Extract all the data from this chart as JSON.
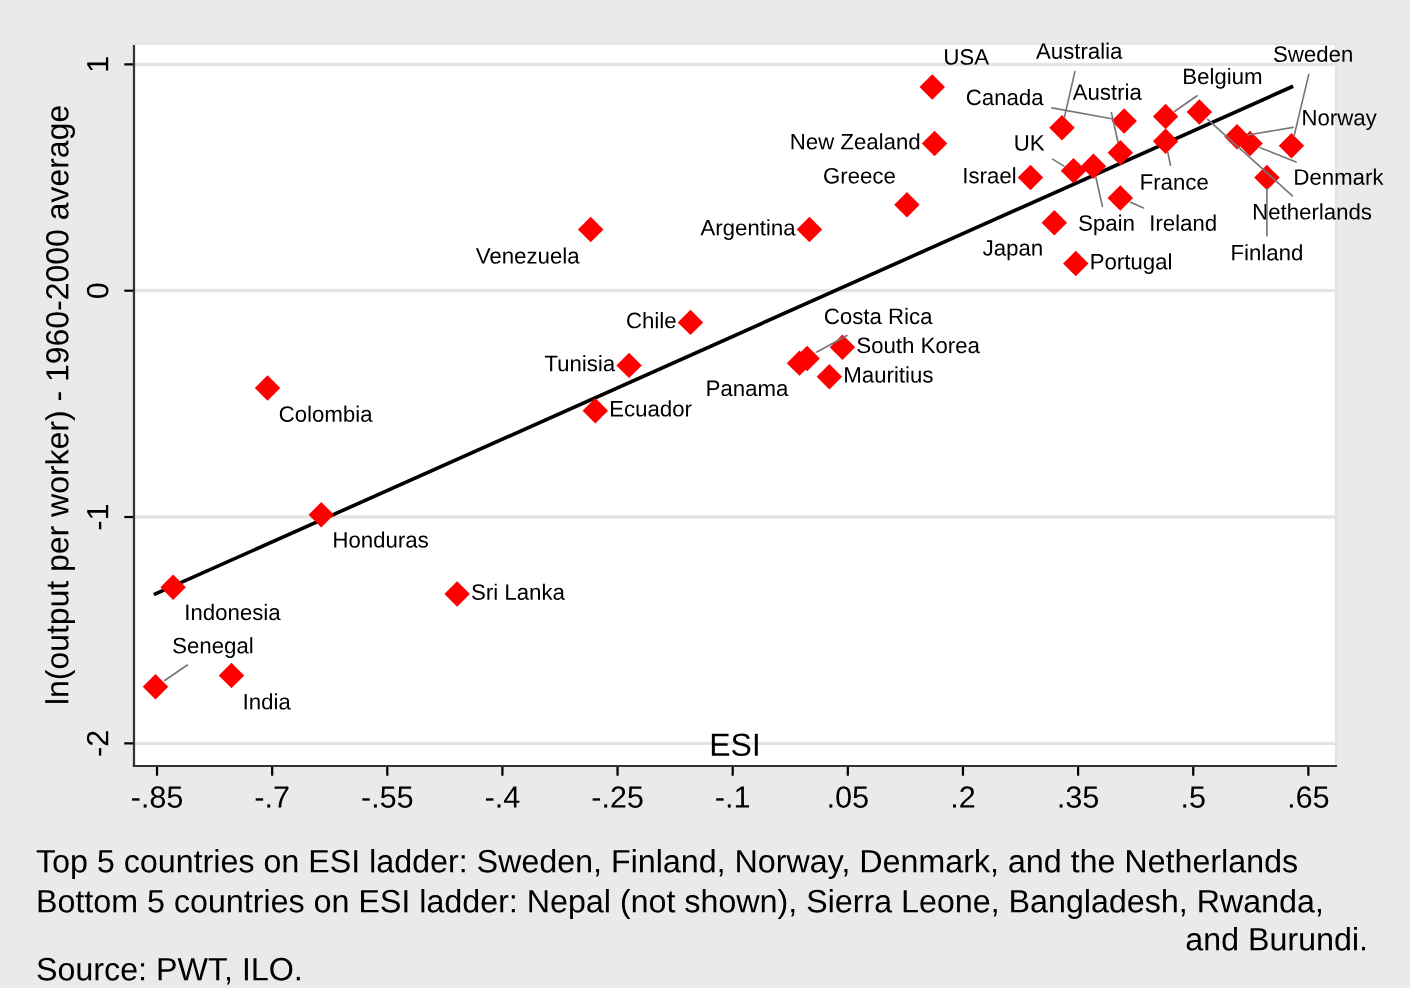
{
  "chart_data": {
    "type": "scatter",
    "xlabel": "ESI",
    "ylabel": "ln(output per worker) - 1960-2000 average",
    "xlim": [
      -0.88,
      0.686
    ],
    "ylim": [
      -2.1,
      1.09
    ],
    "xticks": [
      {
        "value": -0.85,
        "label": "-.85"
      },
      {
        "value": -0.7,
        "label": "-.7"
      },
      {
        "value": -0.55,
        "label": "-.55"
      },
      {
        "value": -0.4,
        "label": "-.4"
      },
      {
        "value": -0.25,
        "label": "-.25"
      },
      {
        "value": -0.1,
        "label": "-.1"
      },
      {
        "value": 0.05,
        "label": ".05"
      },
      {
        "value": 0.2,
        "label": ".2"
      },
      {
        "value": 0.35,
        "label": ".35"
      },
      {
        "value": 0.5,
        "label": ".5"
      },
      {
        "value": 0.65,
        "label": ".65"
      }
    ],
    "yticks": [
      -2,
      -1,
      0,
      1
    ],
    "grid": "y",
    "series": [
      {
        "color": "#ff0000",
        "marker": "diamond",
        "x": [
          0.16,
          0.163,
          0.329,
          0.41,
          0.464,
          0.508,
          0.464,
          0.557,
          0.574,
          0.628,
          0.596,
          0.405,
          0.37,
          0.344,
          0.288,
          0.405,
          0.319,
          0.347,
          0.127,
          0.0,
          -0.285,
          -0.155,
          -0.235,
          -0.279,
          -0.013,
          -0.003,
          0.043,
          0.026,
          -0.706,
          -0.636,
          -0.829,
          -0.459,
          -0.753,
          -0.852
        ],
        "values": [
          0.9,
          0.65,
          0.72,
          0.75,
          0.77,
          0.79,
          0.66,
          0.68,
          0.65,
          0.64,
          0.5,
          0.61,
          0.55,
          0.53,
          0.5,
          0.41,
          0.3,
          0.12,
          0.38,
          0.27,
          0.27,
          -0.14,
          -0.33,
          -0.53,
          -0.32,
          -0.3,
          -0.25,
          -0.38,
          -0.43,
          -0.99,
          -1.31,
          -1.34,
          -1.7,
          -1.75
        ]
      },
      {
        "type": "line",
        "color": "#000000",
        "marker": "none",
        "line_style": "solid",
        "x": [
          -0.852,
          0.628
        ],
        "values": [
          -1.34,
          0.9
        ]
      }
    ],
    "annotations": [
      {
        "text": "USA",
        "x": 0.16,
        "y": 0.905
      },
      {
        "text": "New Zealand",
        "x": 0.163,
        "y": 0.65
      },
      {
        "text": "Australia",
        "x": 0.329,
        "y": 0.72
      },
      {
        "text": "Canada",
        "x": 0.41,
        "y": 0.75
      },
      {
        "text": "Belgium",
        "x": 0.464,
        "y": 0.765
      },
      {
        "text": "Netherlands",
        "x": 0.508,
        "y": 0.79
      },
      {
        "text": "France",
        "x": 0.464,
        "y": 0.66
      },
      {
        "text": "Norway",
        "x": 0.557,
        "y": 0.68
      },
      {
        "text": "Denmark",
        "x": 0.574,
        "y": 0.65
      },
      {
        "text": "Sweden",
        "x": 0.628,
        "y": 0.635
      },
      {
        "text": "Finland",
        "x": 0.596,
        "y": 0.5
      },
      {
        "text": "Austria",
        "x": 0.405,
        "y": 0.61
      },
      {
        "text": "Spain",
        "x": 0.37,
        "y": 0.55
      },
      {
        "text": "UK",
        "x": 0.344,
        "y": 0.525
      },
      {
        "text": "Israel",
        "x": 0.288,
        "y": 0.5
      },
      {
        "text": "Ireland",
        "x": 0.405,
        "y": 0.41
      },
      {
        "text": "Japan",
        "x": 0.319,
        "y": 0.3
      },
      {
        "text": "Portugal",
        "x": 0.347,
        "y": 0.12
      },
      {
        "text": "Greece",
        "x": 0.127,
        "y": 0.38
      },
      {
        "text": "Argentina",
        "x": 0.0,
        "y": 0.27
      },
      {
        "text": "Venezuela",
        "x": -0.285,
        "y": 0.265
      },
      {
        "text": "Chile",
        "x": -0.155,
        "y": -0.14
      },
      {
        "text": "Tunisia",
        "x": -0.235,
        "y": -0.33
      },
      {
        "text": "Ecuador",
        "x": -0.279,
        "y": -0.53
      },
      {
        "text": "Panama",
        "x": -0.013,
        "y": -0.32
      },
      {
        "text": "Costa Rica",
        "x": -0.003,
        "y": -0.295
      },
      {
        "text": "South Korea",
        "x": 0.043,
        "y": -0.25
      },
      {
        "text": "Mauritius",
        "x": 0.026,
        "y": -0.38
      },
      {
        "text": "Colombia",
        "x": -0.706,
        "y": -0.434
      },
      {
        "text": "Honduras",
        "x": -0.636,
        "y": -0.99
      },
      {
        "text": "Indonesia",
        "x": -0.829,
        "y": -1.31
      },
      {
        "text": "Sri Lanka",
        "x": -0.459,
        "y": -1.34
      },
      {
        "text": "India",
        "x": -0.753,
        "y": -1.705
      },
      {
        "text": "Senegal",
        "x": -0.852,
        "y": -1.75
      },
      "Top 5 countries on ESI ladder: Sweden, Finland, Norway, Denmark, and the Netherlands",
      "Bottom 5 countries on ESI ladder: Nepal (not shown), Sierra Leone, Bangladesh, Rwanda,",
      "and Burundi.",
      "Source: PWT, ILO."
    ]
  }
}
